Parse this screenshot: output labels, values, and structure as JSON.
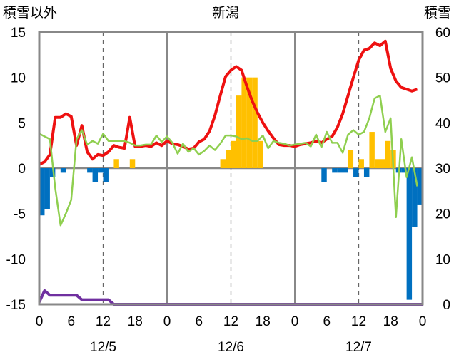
{
  "chart_data": {
    "type": "bar+line",
    "title": "新潟",
    "left_axis_label": "積雪以外",
    "right_axis_label": "積雪",
    "left_ylim": [
      -15,
      15
    ],
    "right_ylim": [
      0,
      60
    ],
    "left_yticks": [
      "15",
      "10",
      "5",
      "0",
      "-5",
      "-10",
      "-15"
    ],
    "right_yticks": [
      "60",
      "50",
      "40",
      "30",
      "20",
      "10",
      "0"
    ],
    "x_tick_labels": [
      "0",
      "6",
      "12",
      "18",
      "0",
      "6",
      "12",
      "18",
      "0",
      "6",
      "12",
      "18",
      "0"
    ],
    "day_labels": [
      "12/5",
      "12/6",
      "12/7"
    ],
    "x_range_hours": [
      0,
      72
    ],
    "grid": "dashed vertical lines at 12h, solid at day boundaries",
    "colors": {
      "red_line": "#ee1111",
      "green_line": "#8fcf4f",
      "purple_line": "#7030a0",
      "bar_positive": "#ffc000",
      "bar_negative": "#0070c0"
    },
    "series": [
      {
        "kind": "line",
        "axis": "left",
        "color_key": "red_line",
        "x": [
          0,
          1,
          2,
          3,
          4,
          5,
          6,
          7,
          8,
          9,
          10,
          11,
          12,
          13,
          14,
          15,
          16,
          17,
          18,
          19,
          20,
          21,
          22,
          23,
          24,
          25,
          26,
          27,
          28,
          29,
          30,
          31,
          32,
          33,
          34,
          35,
          36,
          37,
          38,
          39,
          40,
          41,
          42,
          43,
          44,
          45,
          46,
          47,
          48,
          49,
          50,
          51,
          52,
          53,
          54,
          55,
          56,
          57,
          58,
          59,
          60,
          61,
          62,
          63,
          64,
          65,
          66,
          67,
          68,
          69,
          70,
          71
        ],
        "values": [
          0.4,
          0.7,
          1.5,
          5.6,
          5.6,
          6.0,
          5.7,
          2.5,
          4.7,
          1.8,
          1.0,
          1.5,
          1.4,
          1.8,
          2.5,
          2.3,
          2.2,
          5.6,
          2.4,
          2.4,
          2.5,
          2.4,
          2.8,
          2.5,
          3.0,
          2.7,
          2.6,
          2.4,
          2.1,
          2.2,
          2.9,
          3.2,
          4.1,
          5.8,
          8.0,
          10.1,
          10.8,
          11.2,
          10.8,
          9.0,
          7.4,
          6.1,
          5.0,
          4.1,
          3.3,
          2.6,
          2.5,
          2.5,
          2.4,
          2.6,
          2.7,
          2.8,
          3.0,
          2.8,
          3.2,
          3.5,
          4.5,
          6.0,
          8.0,
          10.0,
          11.9,
          13.0,
          13.2,
          13.8,
          13.5,
          14.0,
          11.0,
          9.6,
          8.9,
          8.7,
          8.5,
          8.7
        ]
      },
      {
        "kind": "line",
        "axis": "left",
        "color_key": "green_line",
        "x": [
          0,
          1,
          2,
          3,
          4,
          5,
          6,
          7,
          8,
          9,
          10,
          11,
          12,
          13,
          14,
          15,
          16,
          17,
          18,
          19,
          20,
          21,
          22,
          23,
          24,
          25,
          26,
          27,
          28,
          29,
          30,
          31,
          32,
          33,
          34,
          35,
          36,
          37,
          38,
          39,
          40,
          41,
          42,
          43,
          44,
          45,
          46,
          47,
          48,
          49,
          50,
          51,
          52,
          53,
          54,
          55,
          56,
          57,
          58,
          59,
          60,
          61,
          62,
          63,
          64,
          65,
          66,
          67,
          68,
          69,
          70,
          71
        ],
        "values": [
          3.8,
          3.5,
          3.2,
          -2.2,
          -6.3,
          -5.0,
          -3.5,
          3.2,
          4.2,
          2.6,
          3.0,
          2.7,
          3.8,
          3.0,
          3.0,
          3.0,
          3.0,
          2.8,
          2.5,
          2.5,
          2.6,
          2.6,
          3.6,
          2.9,
          3.5,
          2.8,
          1.6,
          2.7,
          1.8,
          2.2,
          1.5,
          1.9,
          2.5,
          2.0,
          2.7,
          3.6,
          3.6,
          3.5,
          3.2,
          3.3,
          3.0,
          3.0,
          3.6,
          2.2,
          3.0,
          2.8,
          2.7,
          2.5,
          2.6,
          2.7,
          2.8,
          2.4,
          3.7,
          2.3,
          4.0,
          2.8,
          2.8,
          1.7,
          3.7,
          4.2,
          3.7,
          4.0,
          5.5,
          7.7,
          8.0,
          4.0,
          5.5,
          -5.4,
          3.2,
          -1.0,
          1.2,
          -2.0
        ]
      },
      {
        "kind": "line",
        "axis": "right",
        "color_key": "purple_line",
        "x": [
          0,
          1,
          2,
          3,
          4,
          5,
          6,
          7,
          8,
          9,
          10,
          11,
          12,
          13,
          14,
          72
        ],
        "values": [
          0.5,
          3,
          2,
          2,
          2,
          2,
          2,
          2,
          1,
          1,
          1,
          1,
          1,
          1,
          0,
          0
        ]
      },
      {
        "kind": "bar",
        "axis": "left",
        "name_key": "snowfall_and_other_bars",
        "x": [
          0,
          1,
          2,
          4,
          9,
          10,
          11,
          12,
          14,
          17,
          34,
          35,
          36,
          37,
          38,
          39,
          40,
          41,
          53,
          55,
          56,
          57,
          58,
          59,
          60,
          61,
          62,
          63,
          64,
          65,
          66,
          67,
          68,
          69,
          70,
          71
        ],
        "values": [
          -5.2,
          -4.5,
          -1.0,
          -0.5,
          -0.5,
          -1.5,
          -0.5,
          -1.5,
          1.0,
          1.0,
          1.0,
          2.0,
          3.0,
          8.0,
          10.0,
          10.0,
          10.0,
          3.0,
          -1.5,
          -0.5,
          -0.5,
          -0.5,
          2.0,
          -1.0,
          1.0,
          -1.0,
          4.0,
          1.0,
          1.0,
          3.0,
          2.0,
          -0.5,
          -0.5,
          -14.5,
          -6.5,
          -4.0
        ]
      }
    ]
  }
}
